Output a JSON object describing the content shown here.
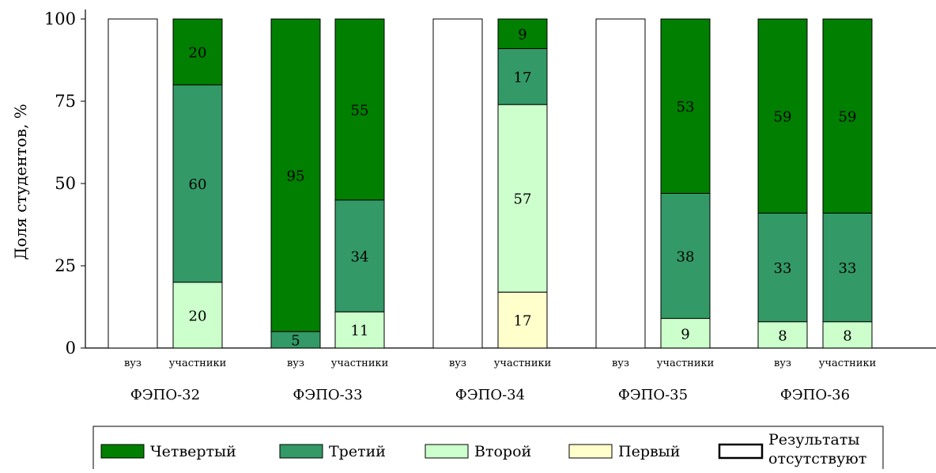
{
  "chart_data": {
    "type": "bar",
    "stacked": true,
    "title": "",
    "ylabel": "Доля студентов, %",
    "ylim": [
      0,
      100
    ],
    "yticks": [
      0,
      25,
      50,
      75,
      100
    ],
    "groups": [
      {
        "label": "ФЭПО-32",
        "bars": [
          {
            "label": "вуз",
            "no_data": true,
            "values": {}
          },
          {
            "label": "участники",
            "no_data": false,
            "values": {
              "Первый": 0,
              "Второй": 20,
              "Третий": 60,
              "Четвертый": 20
            }
          }
        ]
      },
      {
        "label": "ФЭПО-33",
        "bars": [
          {
            "label": "вуз",
            "no_data": false,
            "values": {
              "Первый": 0,
              "Второй": 0,
              "Третий": 5,
              "Четвертый": 95
            }
          },
          {
            "label": "участники",
            "no_data": false,
            "values": {
              "Первый": 0,
              "Второй": 11,
              "Третий": 34,
              "Четвертый": 55
            }
          }
        ]
      },
      {
        "label": "ФЭПО-34",
        "bars": [
          {
            "label": "вуз",
            "no_data": true,
            "values": {}
          },
          {
            "label": "участники",
            "no_data": false,
            "values": {
              "Первый": 17,
              "Второй": 57,
              "Третий": 17,
              "Четвертый": 9
            }
          }
        ]
      },
      {
        "label": "ФЭПО-35",
        "bars": [
          {
            "label": "вуз",
            "no_data": true,
            "values": {}
          },
          {
            "label": "участники",
            "no_data": false,
            "values": {
              "Первый": 0,
              "Второй": 9,
              "Третий": 38,
              "Четвертый": 53
            }
          }
        ]
      },
      {
        "label": "ФЭПО-36",
        "bars": [
          {
            "label": "вуз",
            "no_data": false,
            "values": {
              "Первый": 0,
              "Второй": 8,
              "Третий": 33,
              "Четвертый": 59
            }
          },
          {
            "label": "участники",
            "no_data": false,
            "values": {
              "Первый": 0,
              "Второй": 8,
              "Третий": 33,
              "Четвертый": 59
            }
          }
        ]
      }
    ],
    "stack_order": [
      "Первый",
      "Второй",
      "Третий",
      "Четвертый"
    ],
    "series": [
      {
        "name": "Четвертый",
        "color": "#007f00"
      },
      {
        "name": "Третий",
        "color": "#339966"
      },
      {
        "name": "Второй",
        "color": "#ccffcc"
      },
      {
        "name": "Первый",
        "color": "#ffffcc"
      }
    ],
    "legend": {
      "placement": "bottom",
      "entries": [
        {
          "name": "Четвертый",
          "color": "#007f00"
        },
        {
          "name": "Третий",
          "color": "#339966"
        },
        {
          "name": "Второй",
          "color": "#ccffcc"
        },
        {
          "name": "Первый",
          "color": "#ffffcc"
        },
        {
          "name": "Результаты отсутствуют",
          "color": "#ffffff",
          "line1": "Результаты",
          "line2": "отсутствуют"
        }
      ]
    },
    "grid": false
  }
}
